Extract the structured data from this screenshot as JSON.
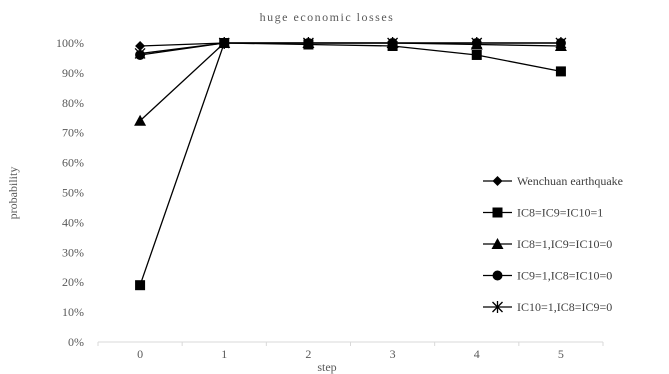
{
  "chart_data": {
    "type": "line",
    "title": "huge economic losses",
    "xlabel": "step",
    "ylabel": "probability",
    "categories": [
      "0",
      "1",
      "2",
      "3",
      "4",
      "5"
    ],
    "ylim": [
      0,
      100
    ],
    "yticks": [
      "0%",
      "10%",
      "20%",
      "30%",
      "40%",
      "50%",
      "60%",
      "70%",
      "80%",
      "90%",
      "100%"
    ],
    "grid": false,
    "legend_position": "right",
    "series": [
      {
        "name": "Wenchuan earthquake",
        "marker": "diamond",
        "values": [
          99,
          100,
          100,
          100,
          100,
          100
        ]
      },
      {
        "name": "IC8=IC9=IC10=1",
        "marker": "square",
        "values": [
          19,
          100,
          99.5,
          99,
          96,
          90.5
        ]
      },
      {
        "name": "IC8=1,IC9=IC10=0",
        "marker": "triangle",
        "values": [
          74,
          100,
          100,
          100,
          99.5,
          99
        ]
      },
      {
        "name": "IC9=1,IC8=IC10=0",
        "marker": "circle",
        "values": [
          96,
          100,
          100,
          100,
          100,
          100
        ]
      },
      {
        "name": "IC10=1,IC8=IC9=0",
        "marker": "star",
        "values": [
          96.5,
          100,
          100,
          100,
          100,
          100
        ]
      }
    ],
    "colors": {
      "series": "#000000",
      "axis": "#d9d9d9",
      "text": "#595959"
    }
  }
}
